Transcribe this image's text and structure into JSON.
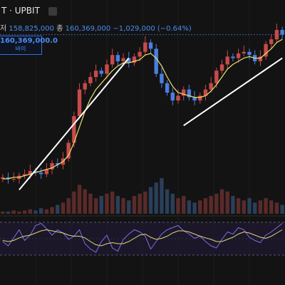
{
  "header": {
    "title": "T · UPBIT"
  },
  "ohlc": {
    "low_label": "저",
    "low_value": "158,825,000",
    "close_label": "종",
    "close_value": "160,369,000",
    "change": "−1,029,000 (−0.64%)"
  },
  "price_box": {
    "value": "160,369,000.0",
    "label": "바이"
  },
  "colors": {
    "background": "#131313",
    "up": "#c84a4a",
    "down": "#4a7fe0",
    "ma": "#e8e06a",
    "rsi": "#7c6ee0",
    "rsi_signal": "#e3d47a",
    "trendline": "#ffffff"
  },
  "chart_data": [
    {
      "type": "line",
      "description_kind": "candlestick",
      "series": [
        {
          "name": "",
          "values": [
            6,
            5,
            5,
            7,
            8,
            10,
            9,
            8,
            11,
            15,
            14,
            18,
            28,
            45,
            62,
            66,
            70,
            74,
            72,
            78,
            84,
            80,
            82,
            79,
            83,
            86,
            92,
            88,
            72,
            66,
            60,
            55,
            58,
            62,
            57,
            55,
            58,
            62,
            66,
            74,
            78,
            83,
            82,
            85,
            86,
            84,
            80,
            83,
            91,
            94,
            100,
            97
          ]
        },
        {
          "name": "",
          "values": [
            5,
            5,
            6,
            6,
            7,
            8,
            9,
            10,
            11,
            12,
            14,
            16,
            20,
            28,
            38,
            48,
            56,
            62,
            66,
            70,
            74,
            77,
            79,
            79,
            80,
            81,
            84,
            85,
            82,
            77,
            70,
            64,
            60,
            59,
            58,
            57,
            57,
            58,
            61,
            65,
            70,
            75,
            78,
            80,
            82,
            83,
            82,
            82,
            85,
            88,
            92,
            94
          ]
        }
      ],
      "ylim": [
        0,
        100
      ]
    },
    {
      "type": "bar",
      "description_kind": "volume",
      "values": [
        2,
        2,
        3,
        2,
        3,
        4,
        3,
        5,
        4,
        6,
        8,
        10,
        14,
        20,
        26,
        22,
        18,
        14,
        16,
        18,
        20,
        16,
        14,
        12,
        16,
        18,
        20,
        24,
        28,
        32,
        22,
        18,
        14,
        16,
        12,
        10,
        12,
        14,
        16,
        18,
        22,
        20,
        16,
        14,
        12,
        14,
        10,
        12,
        14,
        12,
        10,
        8
      ]
    },
    {
      "type": "line",
      "description_kind": "oscillator",
      "series": [
        {
          "name": "",
          "values": [
            48,
            40,
            55,
            70,
            50,
            60,
            78,
            82,
            72,
            60,
            70,
            64,
            52,
            58,
            70,
            44,
            34,
            28,
            48,
            60,
            36,
            30,
            52,
            62,
            70,
            66,
            58,
            34,
            48,
            62,
            70,
            74,
            78,
            68,
            62,
            54,
            58,
            48,
            40,
            36,
            52,
            66,
            62,
            74,
            70,
            56,
            50,
            46,
            60,
            66,
            74,
            82
          ]
        },
        {
          "name": "",
          "values": [
            50,
            48,
            50,
            55,
            58,
            60,
            64,
            68,
            70,
            68,
            66,
            64,
            60,
            58,
            58,
            55,
            48,
            42,
            40,
            44,
            46,
            44,
            44,
            48,
            54,
            60,
            62,
            56,
            52,
            54,
            58,
            64,
            68,
            68,
            66,
            62,
            58,
            55,
            52,
            48,
            48,
            52,
            56,
            62,
            66,
            64,
            60,
            56,
            54,
            58,
            64,
            70
          ]
        }
      ],
      "ylim": [
        0,
        100
      ]
    }
  ]
}
